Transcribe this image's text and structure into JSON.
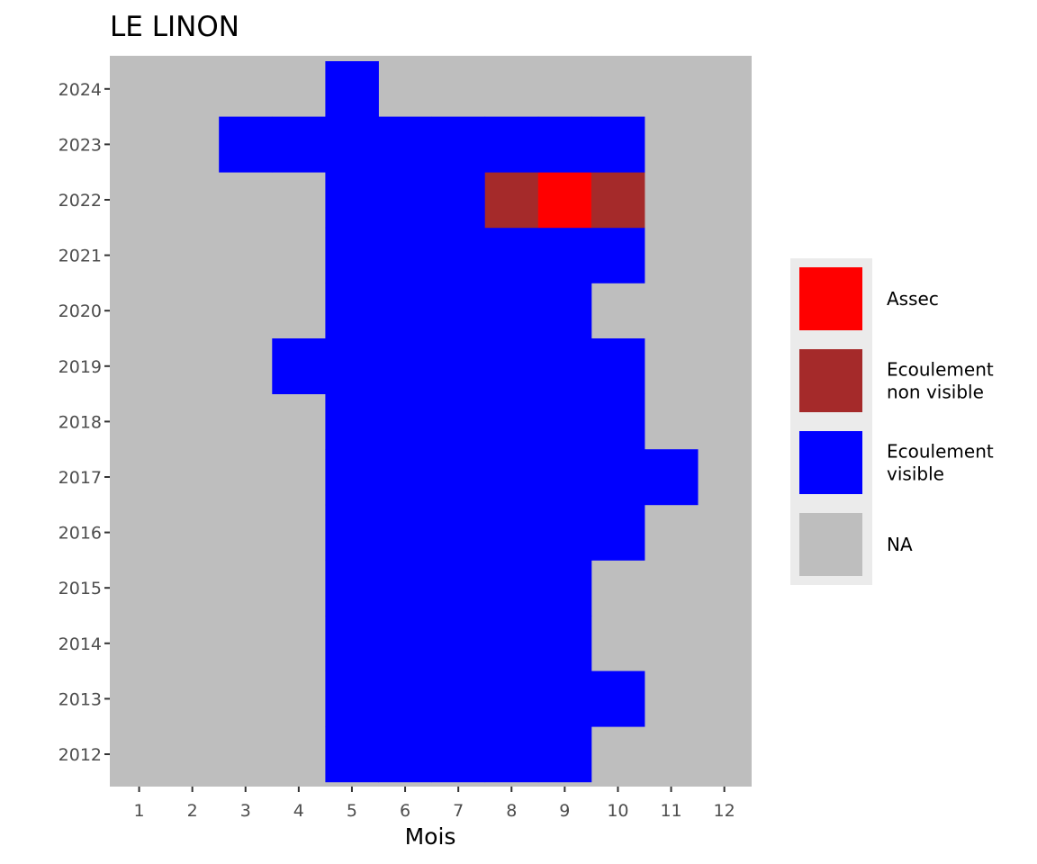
{
  "chart_data": {
    "type": "heatmap",
    "title": "LE LINON",
    "xlabel": "Mois",
    "ylabel": "",
    "x_categories": [
      "1",
      "2",
      "3",
      "4",
      "5",
      "6",
      "7",
      "8",
      "9",
      "10",
      "11",
      "12"
    ],
    "y_categories": [
      "2012",
      "2013",
      "2014",
      "2015",
      "2016",
      "2017",
      "2018",
      "2019",
      "2020",
      "2021",
      "2022",
      "2023",
      "2024"
    ],
    "categories_legend": [
      {
        "key": "A",
        "label_lines": [
          "Assec"
        ],
        "color": "#ff0000"
      },
      {
        "key": "N",
        "label_lines": [
          "Ecoulement",
          "non visible"
        ],
        "color": "#a52a2a"
      },
      {
        "key": "V",
        "label_lines": [
          "Ecoulement",
          "visible"
        ],
        "color": "#0000ff"
      },
      {
        "key": "-",
        "label_lines": [
          "NA"
        ],
        "color": "#bebebe"
      }
    ],
    "grid": {
      "2024": [
        "-",
        "-",
        "-",
        "-",
        "V",
        "-",
        "-",
        "-",
        "-",
        "-",
        "-",
        "-"
      ],
      "2023": [
        "-",
        "-",
        "V",
        "V",
        "V",
        "V",
        "V",
        "V",
        "V",
        "V",
        "-",
        "-"
      ],
      "2022": [
        "-",
        "-",
        "-",
        "-",
        "V",
        "V",
        "V",
        "N",
        "A",
        "N",
        "-",
        "-"
      ],
      "2021": [
        "-",
        "-",
        "-",
        "-",
        "V",
        "V",
        "V",
        "V",
        "V",
        "V",
        "-",
        "-"
      ],
      "2020": [
        "-",
        "-",
        "-",
        "-",
        "V",
        "V",
        "V",
        "V",
        "V",
        "-",
        "-",
        "-"
      ],
      "2019": [
        "-",
        "-",
        "-",
        "V",
        "V",
        "V",
        "V",
        "V",
        "V",
        "V",
        "-",
        "-"
      ],
      "2018": [
        "-",
        "-",
        "-",
        "-",
        "V",
        "V",
        "V",
        "V",
        "V",
        "V",
        "-",
        "-"
      ],
      "2017": [
        "-",
        "-",
        "-",
        "-",
        "V",
        "V",
        "V",
        "V",
        "V",
        "V",
        "V",
        "-"
      ],
      "2016": [
        "-",
        "-",
        "-",
        "-",
        "V",
        "V",
        "V",
        "V",
        "V",
        "V",
        "-",
        "-"
      ],
      "2015": [
        "-",
        "-",
        "-",
        "-",
        "V",
        "V",
        "V",
        "V",
        "V",
        "-",
        "-",
        "-"
      ],
      "2014": [
        "-",
        "-",
        "-",
        "-",
        "V",
        "V",
        "V",
        "V",
        "V",
        "-",
        "-",
        "-"
      ],
      "2013": [
        "-",
        "-",
        "-",
        "-",
        "V",
        "V",
        "V",
        "V",
        "V",
        "V",
        "-",
        "-"
      ],
      "2012": [
        "-",
        "-",
        "-",
        "-",
        "V",
        "V",
        "V",
        "V",
        "V",
        "-",
        "-",
        "-"
      ]
    },
    "legend_position": "right",
    "panel_background": "#bebebe"
  }
}
